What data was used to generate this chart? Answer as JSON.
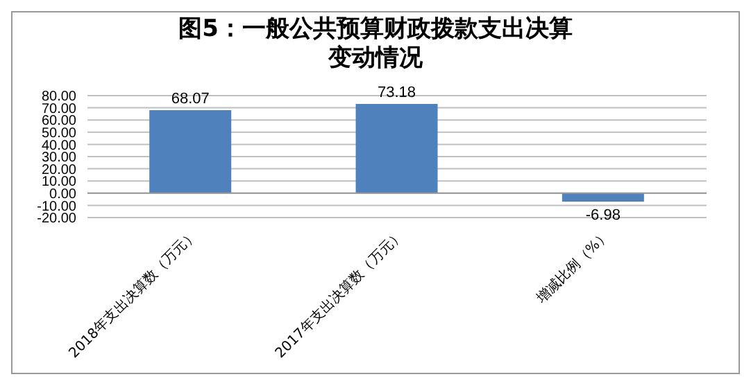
{
  "chart_data": {
    "type": "bar",
    "title": "图5：一般公共预算财政拨款支出决算变动情况",
    "categories": [
      "2018年支出决算数（万元）",
      "2017年支出决算数（万元）",
      "增减比例（%）"
    ],
    "values": [
      68.07,
      73.18,
      -6.98
    ],
    "color": "#4f81bd",
    "data_labels": true,
    "grid": "y",
    "ylim": [
      -20,
      80
    ],
    "yticks": [
      {
        "value": -20,
        "label": "-20.00"
      },
      {
        "value": -10,
        "label": "-10.00"
      },
      {
        "value": 0,
        "label": "0.00"
      },
      {
        "value": 10,
        "label": "10.00"
      },
      {
        "value": 20,
        "label": "20.00"
      },
      {
        "value": 30,
        "label": "30.00"
      },
      {
        "value": 40,
        "label": "40.00"
      },
      {
        "value": 50,
        "label": "50.00"
      },
      {
        "value": 60,
        "label": "60.00"
      },
      {
        "value": 70,
        "label": "70.00"
      },
      {
        "value": 80,
        "label": "80.00"
      }
    ]
  }
}
